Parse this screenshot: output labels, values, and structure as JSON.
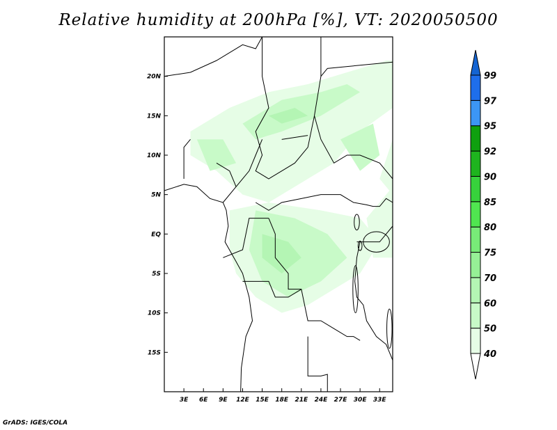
{
  "title": "Relative humidity at 200hPa [%], VT: 2020050500",
  "footer": "GrADS: IGES/COLA",
  "chart_data": {
    "type": "heatmap",
    "title": "Relative humidity at 200hPa [%], VT: 2020050500",
    "variable": "Relative humidity",
    "level": "200hPa",
    "units": "%",
    "valid_time": "2020050500",
    "lon_range": [
      0,
      35
    ],
    "lat_range": [
      -20,
      25
    ],
    "x_ticks": [
      {
        "v": 3,
        "label": "3E"
      },
      {
        "v": 6,
        "label": "6E"
      },
      {
        "v": 9,
        "label": "9E"
      },
      {
        "v": 12,
        "label": "12E"
      },
      {
        "v": 15,
        "label": "15E"
      },
      {
        "v": 18,
        "label": "18E"
      },
      {
        "v": 21,
        "label": "21E"
      },
      {
        "v": 24,
        "label": "24E"
      },
      {
        "v": 27,
        "label": "27E"
      },
      {
        "v": 30,
        "label": "30E"
      },
      {
        "v": 33,
        "label": "33E"
      }
    ],
    "y_ticks": [
      {
        "v": 20,
        "label": "20N"
      },
      {
        "v": 15,
        "label": "15N"
      },
      {
        "v": 10,
        "label": "10N"
      },
      {
        "v": 5,
        "label": "5N"
      },
      {
        "v": 0,
        "label": "EQ"
      },
      {
        "v": -5,
        "label": "5S"
      },
      {
        "v": -10,
        "label": "10S"
      },
      {
        "v": -15,
        "label": "15S"
      }
    ],
    "colorbar": {
      "levels": [
        "40",
        "50",
        "60",
        "70",
        "75",
        "80",
        "85",
        "90",
        "92",
        "95",
        "97",
        "99"
      ],
      "colors": [
        "#ffffff",
        "#e6fde6",
        "#c8fac8",
        "#b4f5b4",
        "#96f096",
        "#78eb78",
        "#50e650",
        "#37d23c",
        "#1eb41e",
        "#0fa00f",
        "#3c96f5",
        "#1e6eeb",
        "#1464d2"
      ]
    }
  }
}
